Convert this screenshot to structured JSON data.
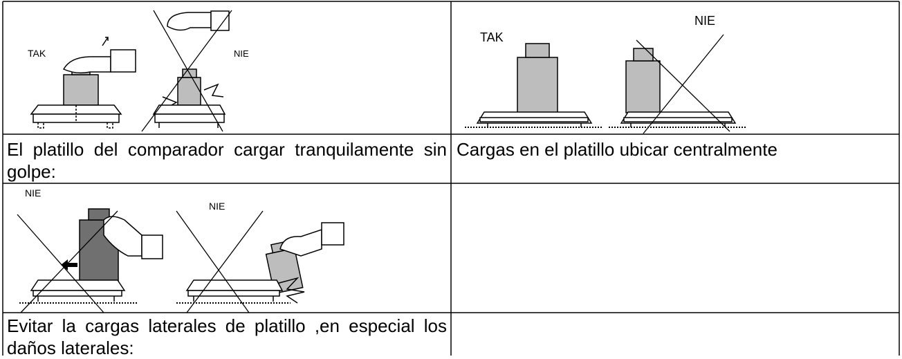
{
  "illustrations": [
    {
      "labels": [
        "TAK",
        "NIE"
      ]
    },
    {
      "labels": [
        "TAK",
        "NIE"
      ]
    },
    {
      "labels": [
        "NIE",
        "NIE"
      ]
    }
  ],
  "captions": [
    "El platillo del comparador cargar tranquilamente  sin golpe:",
    "Cargas en el platillo ubicar centralmente",
    "Evitar la cargas laterales de platillo  ,en especial los daños laterales:"
  ]
}
